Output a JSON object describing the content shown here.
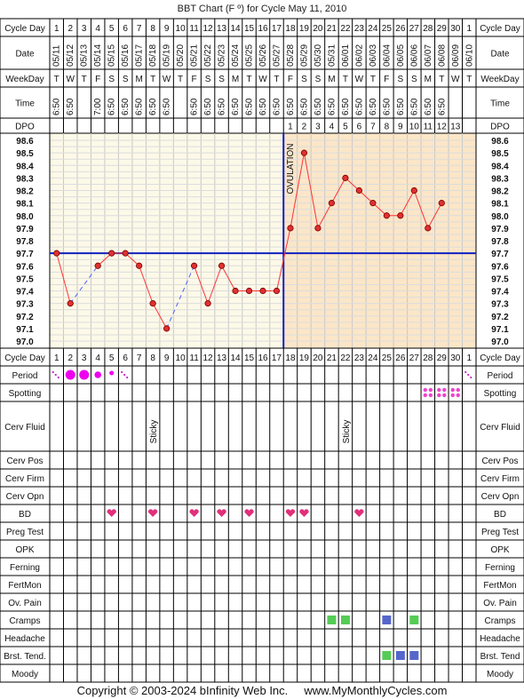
{
  "title": "BBT Chart (F º) for Cycle May 11, 2010",
  "footer": "Copyright © 2003-2024 bInfinity Web Inc.     www.MyMonthlyCycles.com",
  "row_labels": {
    "cycle_day": "Cycle Day",
    "date": "Date",
    "weekday": "WeekDay",
    "time": "Time",
    "dpo": "DPO"
  },
  "cycle_days": [
    "1",
    "2",
    "3",
    "4",
    "5",
    "6",
    "7",
    "8",
    "9",
    "10",
    "11",
    "12",
    "13",
    "14",
    "15",
    "16",
    "17",
    "18",
    "19",
    "20",
    "21",
    "22",
    "23",
    "24",
    "25",
    "26",
    "27",
    "28",
    "29",
    "30",
    "1"
  ],
  "dates": [
    "05/11",
    "05/12",
    "05/13",
    "05/14",
    "05/15",
    "05/16",
    "05/17",
    "05/18",
    "05/19",
    "05/20",
    "05/21",
    "05/22",
    "05/23",
    "05/24",
    "05/25",
    "05/26",
    "05/27",
    "05/28",
    "05/29",
    "05/30",
    "05/31",
    "06/01",
    "06/02",
    "06/03",
    "06/04",
    "06/05",
    "06/06",
    "06/07",
    "06/08",
    "06/09",
    "06/10"
  ],
  "weekdays": [
    "T",
    "W",
    "T",
    "F",
    "S",
    "S",
    "M",
    "T",
    "W",
    "T",
    "F",
    "S",
    "S",
    "M",
    "T",
    "W",
    "T",
    "F",
    "S",
    "S",
    "M",
    "T",
    "W",
    "T",
    "F",
    "S",
    "S",
    "M",
    "T",
    "W",
    "T"
  ],
  "times": [
    "6:50",
    "6:50",
    "",
    "7:00",
    "6:50",
    "6:50",
    "6:50",
    "6:50",
    "6:50",
    "",
    "6:50",
    "6:50",
    "6:50",
    "6:50",
    "6:50",
    "6:50",
    "6:50",
    "6:50",
    "6:50",
    "6:50",
    "6:50",
    "6:50",
    "6:50",
    "6:50",
    "6:50",
    "6:50",
    "6:50",
    "6:50",
    "6:50",
    "",
    ""
  ],
  "dpo": [
    "",
    "",
    "",
    "",
    "",
    "",
    "",
    "",
    "",
    "",
    "",
    "",
    "",
    "",
    "",
    "",
    "",
    "1",
    "2",
    "3",
    "4",
    "5",
    "6",
    "7",
    "8",
    "9",
    "10",
    "11",
    "12",
    "13",
    ""
  ],
  "chart_data": {
    "type": "line",
    "title": "BBT Chart (F º) for Cycle May 11, 2010",
    "x": [
      1,
      2,
      3,
      4,
      5,
      6,
      7,
      8,
      9,
      10,
      11,
      12,
      13,
      14,
      15,
      16,
      17,
      18,
      19,
      20,
      21,
      22,
      23,
      24,
      25,
      26,
      27,
      28,
      29,
      30
    ],
    "temps": [
      97.7,
      97.3,
      null,
      97.6,
      97.7,
      97.7,
      97.6,
      97.3,
      97.1,
      null,
      97.6,
      97.3,
      97.6,
      97.4,
      97.4,
      97.4,
      97.4,
      97.9,
      98.5,
      97.9,
      98.1,
      98.3,
      98.2,
      98.1,
      98.0,
      98.0,
      98.2,
      97.9,
      98.1,
      null
    ],
    "ylim": [
      97.0,
      98.6
    ],
    "y_ticks": [
      "98.6",
      "98.5",
      "98.4",
      "98.3",
      "98.2",
      "98.1",
      "98.0",
      "97.9",
      "97.8",
      "97.7",
      "97.6",
      "97.5",
      "97.4",
      "97.3",
      "97.2",
      "97.1",
      "97.0"
    ],
    "coverline": 97.7,
    "ovulation_day": 17,
    "ovulation_label": "OVULATION",
    "line_color": "#ff3333",
    "point_color": "#e03030",
    "coverline_color": "#1020c0",
    "gap_line_color": "#5060ff",
    "pre_ov_bg": "#fcf9e8",
    "post_ov_bg": "#fbe6c8"
  },
  "observations": [
    {
      "label": "Period",
      "marks": [
        [
          1,
          "light"
        ],
        [
          2,
          "heavy"
        ],
        [
          3,
          "heavy"
        ],
        [
          4,
          "medium"
        ],
        [
          5,
          "small"
        ],
        [
          6,
          "light"
        ],
        [
          31,
          "light"
        ]
      ]
    },
    {
      "label": "Spotting",
      "marks": [
        [
          28,
          "spots"
        ],
        [
          29,
          "spots"
        ],
        [
          30,
          "spots"
        ]
      ]
    },
    {
      "label": "Cerv Fluid",
      "texts": [
        [
          8,
          "Sticky"
        ],
        [
          22,
          "Sticky"
        ]
      ]
    },
    {
      "label": "Cerv Pos"
    },
    {
      "label": "Cerv Firm"
    },
    {
      "label": "Cerv Opn"
    },
    {
      "label": "BD",
      "marks": [
        [
          5,
          "heart"
        ],
        [
          8,
          "heart"
        ],
        [
          11,
          "heart"
        ],
        [
          13,
          "heart"
        ],
        [
          15,
          "heart"
        ],
        [
          18,
          "heart"
        ],
        [
          19,
          "heart"
        ],
        [
          23,
          "heart"
        ]
      ]
    },
    {
      "label": "Preg Test"
    },
    {
      "label": "OPK"
    },
    {
      "label": "Ferning"
    },
    {
      "label": "FertMon"
    },
    {
      "label": "Ov. Pain"
    },
    {
      "label": "Cramps",
      "marks": [
        [
          21,
          "green"
        ],
        [
          22,
          "green"
        ],
        [
          25,
          "blue"
        ],
        [
          27,
          "green"
        ]
      ]
    },
    {
      "label": "Headache"
    },
    {
      "label": "Brst. Tend.",
      "marks": [
        [
          25,
          "green"
        ],
        [
          26,
          "blue"
        ],
        [
          27,
          "blue"
        ]
      ]
    },
    {
      "label": "Moody"
    }
  ],
  "right_labels": {
    "cramps": "Cramps",
    "brst_tend": "Brst. Tend"
  }
}
